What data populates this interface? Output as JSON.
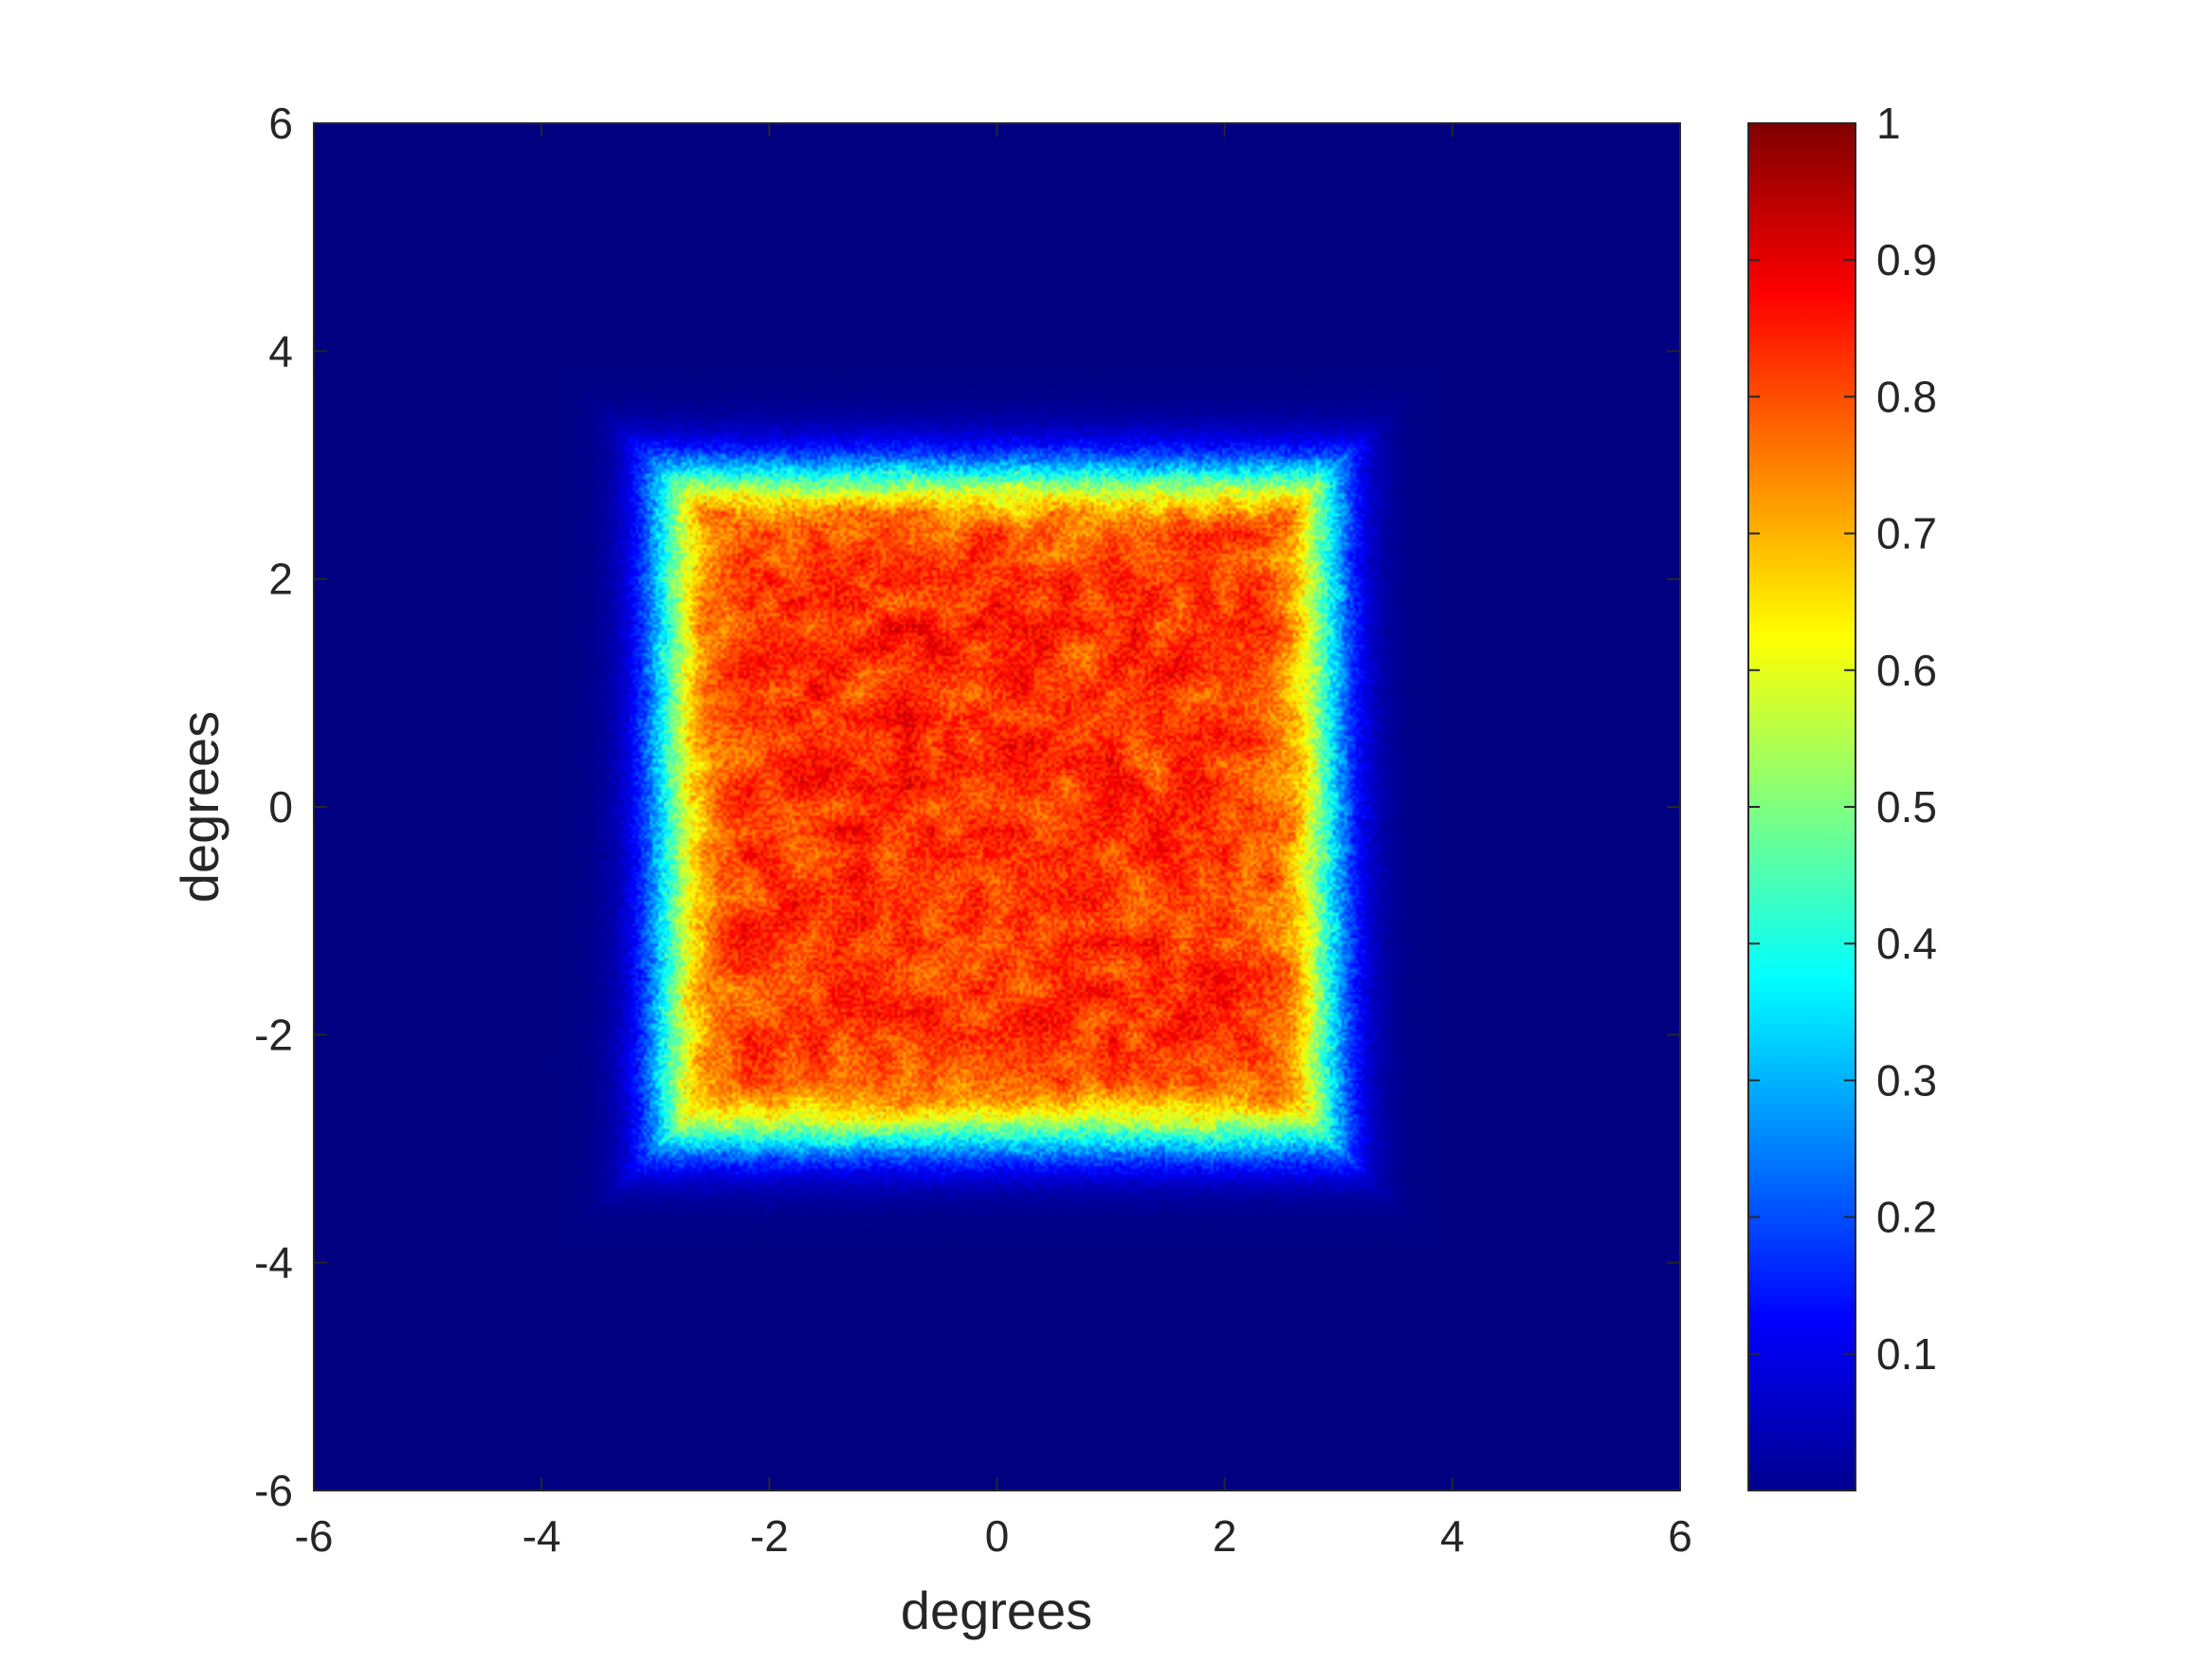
{
  "chart_data": {
    "type": "heatmap",
    "title": "",
    "xlabel": "degrees",
    "ylabel": "degrees",
    "xlim": [
      -6,
      6
    ],
    "ylim": [
      -6,
      6
    ],
    "xticks": [
      -6,
      -4,
      -2,
      0,
      2,
      4,
      6
    ],
    "yticks": [
      -6,
      -4,
      -2,
      0,
      2,
      4,
      6
    ],
    "grid": false,
    "colormap": "jet",
    "colorbar": {
      "range": [
        0,
        1
      ],
      "ticks": [
        0.1,
        0.2,
        0.3,
        0.4,
        0.5,
        0.6,
        0.7,
        0.8,
        0.9,
        1
      ],
      "tick_labels": [
        "0.1",
        "0.2",
        "0.3",
        "0.4",
        "0.5",
        "0.6",
        "0.7",
        "0.8",
        "0.9",
        "1"
      ],
      "placement": "right"
    },
    "field": {
      "shape": "square",
      "x_extent": [
        -2.9,
        2.9
      ],
      "y_extent": [
        -2.9,
        2.9
      ],
      "interior_value_range": [
        0.7,
        0.95
      ],
      "edge_value_range": [
        0.3,
        0.6
      ],
      "background_value": 0
    }
  }
}
